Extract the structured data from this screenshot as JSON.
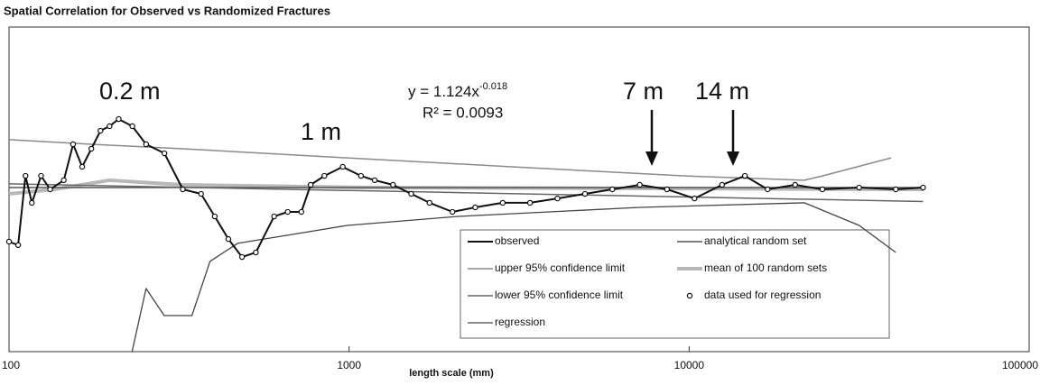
{
  "chart_data": {
    "type": "line",
    "title": "Spatial Correlation for Observed vs Randomized Fractures",
    "x_label": "length scale (mm)",
    "xscale": "log",
    "xlim": [
      100,
      100000
    ],
    "xticks": [
      100,
      1000,
      10000,
      100000
    ],
    "ylim": [
      0,
      2
    ],
    "annotations": [
      "0.2 m",
      "1 m",
      "7 m",
      "14 m"
    ],
    "equation": {
      "text": "y = 1.124x",
      "superscript": "-0.018",
      "r2": "R² = 0.0093"
    },
    "series": [
      {
        "name": "observed",
        "color": "#111111",
        "width": 2,
        "x": [
          100,
          106.4,
          111.8,
          116.7,
          124.2,
          132.1,
          144.9,
          154.3,
          164.1,
          174.6,
          185.7,
          197.5,
          210.1,
          230.5,
          253,
          286.4,
          324.3,
          367.1,
          402.7,
          441.6,
          484.4,
          532,
          602,
          660,
          724,
          771,
          846,
          958,
          1084,
          1189,
          1346,
          1523,
          1724,
          2014,
          2350,
          2830,
          3405,
          4100,
          4940,
          5945,
          7160,
          8610,
          10370,
          12500,
          14590,
          17020,
          20500,
          24660,
          31620,
          40530,
          48750
        ],
        "values": [
          0.678,
          0.656,
          1.083,
          0.917,
          1.083,
          1.0,
          1.056,
          1.278,
          1.139,
          1.25,
          1.361,
          1.389,
          1.433,
          1.389,
          1.278,
          1.222,
          1.0,
          0.972,
          0.833,
          0.694,
          0.583,
          0.611,
          0.833,
          0.861,
          0.861,
          1.028,
          1.083,
          1.139,
          1.083,
          1.056,
          1.028,
          0.972,
          0.917,
          0.861,
          0.889,
          0.917,
          0.917,
          0.944,
          0.972,
          1.0,
          1.028,
          1.0,
          0.944,
          1.028,
          1.083,
          1.0,
          1.028,
          1.0,
          1.011,
          1.0,
          1.011
        ]
      },
      {
        "name": "analytical random set",
        "color": "#555555",
        "width": 1.5,
        "x": [
          100,
          48750
        ],
        "values": [
          1.011,
          1.011
        ]
      },
      {
        "name": "upper 95% confidence limit",
        "color": "#8a8a8a",
        "width": 1.5,
        "x": [
          100,
          175,
          324,
          988,
          3007,
          9750,
          21820,
          24660,
          39270
        ],
        "values": [
          1.306,
          1.278,
          1.25,
          1.194,
          1.139,
          1.083,
          1.056,
          1.083,
          1.194
        ]
      },
      {
        "name": "mean of 100 random sets",
        "color": "#b8b8b8",
        "width": 4,
        "x": [
          100,
          136,
          197.5,
          324,
          1117,
          48750
        ],
        "values": [
          0.972,
          1.0,
          1.056,
          1.028,
          1.011,
          1.0
        ]
      },
      {
        "name": "lower 95% confidence limit",
        "color": "#444444",
        "width": 1.3,
        "x": [
          230,
          253,
          286,
          345,
          390,
          470,
          681,
          988,
          2075,
          7160,
          21820,
          31620,
          40530
        ],
        "values": [
          0,
          0.389,
          0.222,
          0.222,
          0.556,
          0.667,
          0.722,
          0.778,
          0.833,
          0.889,
          0.917,
          0.778,
          0.611
        ]
      },
      {
        "name": "data used for regression",
        "color": "#111111",
        "style": "markers",
        "x": [
          100,
          106.4,
          111.8,
          116.7,
          124.2,
          132.1,
          144.9,
          154.3,
          164.1,
          174.6,
          185.7,
          197.5,
          210.1,
          230.5,
          253,
          286.4,
          324.3,
          367.1,
          402.7,
          441.6,
          484.4,
          532,
          602,
          660,
          724,
          771,
          846,
          958,
          1084,
          1189,
          1346,
          1523,
          1724,
          2014,
          2350,
          2830,
          3405,
          4100,
          4940,
          5945,
          7160,
          8610,
          10370,
          12500,
          14590,
          17020,
          20500,
          24660,
          31620,
          40530,
          48750
        ],
        "values": [
          0.678,
          0.656,
          1.083,
          0.917,
          1.083,
          1.0,
          1.056,
          1.278,
          1.139,
          1.25,
          1.361,
          1.389,
          1.433,
          1.389,
          1.278,
          1.222,
          1.0,
          0.972,
          0.833,
          0.694,
          0.583,
          0.611,
          0.833,
          0.861,
          0.861,
          1.028,
          1.083,
          1.139,
          1.083,
          1.056,
          1.028,
          0.972,
          0.917,
          0.861,
          0.889,
          0.917,
          0.917,
          0.944,
          0.972,
          1.0,
          1.028,
          1.0,
          0.944,
          1.028,
          1.083,
          1.0,
          1.028,
          1.0,
          1.011,
          1.0,
          1.011
        ]
      },
      {
        "name": "regression",
        "color": "#666666",
        "width": 1.5,
        "x": [
          100,
          1000,
          10000,
          48750
        ],
        "values": [
          1.034,
          0.993,
          0.953,
          0.925
        ]
      }
    ]
  }
}
